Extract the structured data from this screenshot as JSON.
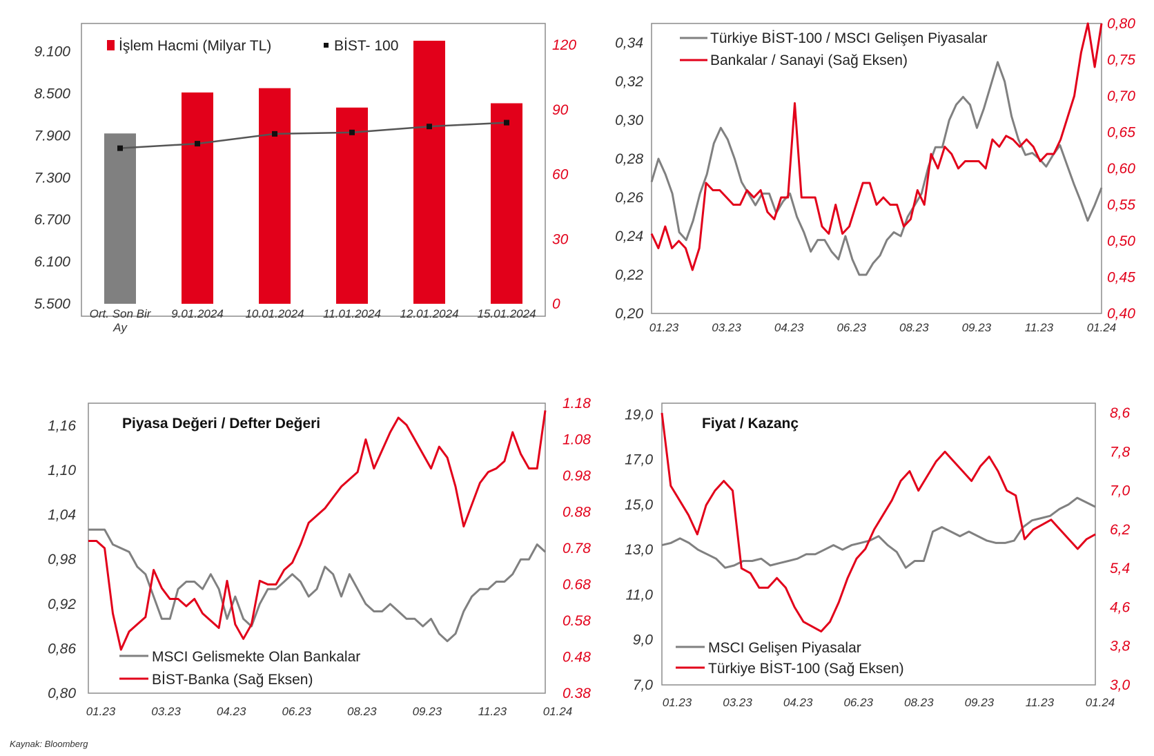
{
  "source": "Kaynak: Bloomberg",
  "colors": {
    "red": "#e2001a",
    "gray": "#808080",
    "line": "#555555",
    "axis": "#8c8c8c",
    "text": "#333333"
  },
  "chart_data": [
    {
      "id": "volume",
      "type": "bar",
      "categories": [
        "Ort. Son Bir Ay",
        "9.01.2024",
        "10.01.2024",
        "11.01.2024",
        "12.01.2024",
        "15.01.2024"
      ],
      "legend": [
        "İşlem Hacmi (Milyar TL)",
        "BİST- 100"
      ],
      "series": [
        {
          "name": "İşlem Hacmi (Milyar TL)",
          "axis": "right",
          "values": [
            79,
            98,
            100,
            91,
            122,
            93
          ],
          "colors": [
            "#808080",
            "#e2001a",
            "#e2001a",
            "#e2001a",
            "#e2001a",
            "#e2001a"
          ]
        },
        {
          "name": "BİST- 100",
          "axis": "left",
          "values": [
            7720,
            7785,
            7925,
            7945,
            8030,
            8085
          ]
        }
      ],
      "ylim_left": [
        5500,
        9500
      ],
      "ylim_right": [
        0,
        130
      ],
      "yticks_left": [
        "9.100",
        "8.500",
        "7.900",
        "7.300",
        "6.700",
        "6.100",
        "5.500"
      ],
      "yticks_left_values": [
        9100,
        8500,
        7900,
        7300,
        6700,
        6100,
        5500
      ],
      "yticks_right": [
        "120",
        "90",
        "60",
        "30",
        "0"
      ],
      "yticks_right_values": [
        120,
        90,
        60,
        30,
        0
      ]
    },
    {
      "id": "msci-ratio",
      "type": "line",
      "x_start": "01.23",
      "x_end": "01.24",
      "xticks": [
        "01.23",
        "03.23",
        "04.23",
        "06.23",
        "08.23",
        "09.23",
        "11.23",
        "01.24"
      ],
      "legend": [
        "Türkiye BİST-100 / MSCI Gelişen Piyasalar",
        "Bankalar / Sanayi (Sağ Eksen)"
      ],
      "series": [
        {
          "name": "Türkiye BİST-100 / MSCI Gelişen Piyasalar",
          "axis": "left",
          "values": [
            0.268,
            0.28,
            0.272,
            0.262,
            0.242,
            0.238,
            0.248,
            0.262,
            0.272,
            0.288,
            0.296,
            0.29,
            0.28,
            0.268,
            0.262,
            0.256,
            0.262,
            0.262,
            0.252,
            0.258,
            0.262,
            0.25,
            0.242,
            0.232,
            0.238,
            0.238,
            0.232,
            0.228,
            0.24,
            0.228,
            0.22,
            0.22,
            0.226,
            0.23,
            0.238,
            0.242,
            0.24,
            0.25,
            0.256,
            0.262,
            0.276,
            0.286,
            0.286,
            0.3,
            0.308,
            0.312,
            0.308,
            0.296,
            0.306,
            0.318,
            0.33,
            0.32,
            0.302,
            0.29,
            0.282,
            0.283,
            0.28,
            0.276,
            0.282,
            0.287,
            0.277,
            0.267,
            0.258,
            0.248,
            0.256,
            0.265
          ]
        },
        {
          "name": "Bankalar / Sanayi (Sağ Eksen)",
          "axis": "right",
          "values": [
            0.51,
            0.49,
            0.52,
            0.49,
            0.5,
            0.49,
            0.46,
            0.49,
            0.58,
            0.57,
            0.57,
            0.56,
            0.55,
            0.55,
            0.57,
            0.56,
            0.57,
            0.54,
            0.53,
            0.56,
            0.56,
            0.69,
            0.56,
            0.56,
            0.56,
            0.52,
            0.51,
            0.55,
            0.51,
            0.52,
            0.55,
            0.58,
            0.58,
            0.55,
            0.56,
            0.55,
            0.55,
            0.52,
            0.53,
            0.57,
            0.55,
            0.62,
            0.6,
            0.63,
            0.62,
            0.6,
            0.61,
            0.61,
            0.61,
            0.6,
            0.64,
            0.63,
            0.645,
            0.64,
            0.63,
            0.64,
            0.63,
            0.61,
            0.62,
            0.62,
            0.64,
            0.67,
            0.7,
            0.76,
            0.8,
            0.74,
            0.81
          ]
        }
      ],
      "ylim_left": [
        0.2,
        0.35
      ],
      "ylim_right": [
        0.4,
        0.8
      ],
      "yticks_left": [
        "0,34",
        "0,32",
        "0,30",
        "0,28",
        "0,26",
        "0,24",
        "0,22",
        "0,20"
      ],
      "yticks_left_values": [
        0.34,
        0.32,
        0.3,
        0.28,
        0.26,
        0.24,
        0.22,
        0.2
      ],
      "yticks_right": [
        "0,80",
        "0,75",
        "0,70",
        "0,65",
        "0,60",
        "0,55",
        "0,50",
        "0,45",
        "0,40"
      ],
      "yticks_right_values": [
        0.8,
        0.75,
        0.7,
        0.65,
        0.6,
        0.55,
        0.5,
        0.45,
        0.4
      ]
    },
    {
      "id": "pb",
      "type": "line",
      "title": "Piyasa Değeri / Defter Değeri",
      "x_start": "01.23",
      "x_end": "01.24",
      "xticks": [
        "01.23",
        "03.23",
        "04.23",
        "06.23",
        "08.23",
        "09.23",
        "11.23",
        "01.24"
      ],
      "legend": [
        "MSCI Gelismekte Olan Bankalar",
        "BİST-Banka (Sağ Eksen)"
      ],
      "series": [
        {
          "name": "MSCI Gelismekte Olan Bankalar",
          "axis": "left",
          "values": [
            1.02,
            1.02,
            1.02,
            1.0,
            0.995,
            0.99,
            0.97,
            0.96,
            0.93,
            0.9,
            0.9,
            0.94,
            0.95,
            0.95,
            0.94,
            0.96,
            0.94,
            0.9,
            0.93,
            0.9,
            0.89,
            0.92,
            0.94,
            0.94,
            0.95,
            0.96,
            0.95,
            0.93,
            0.94,
            0.97,
            0.96,
            0.93,
            0.96,
            0.94,
            0.92,
            0.91,
            0.91,
            0.92,
            0.91,
            0.9,
            0.9,
            0.89,
            0.9,
            0.88,
            0.87,
            0.88,
            0.91,
            0.93,
            0.94,
            0.94,
            0.95,
            0.95,
            0.96,
            0.98,
            0.98,
            1.0,
            0.99
          ]
        },
        {
          "name": "BİST-Banka (Sağ Eksen)",
          "axis": "right",
          "values": [
            0.8,
            0.8,
            0.78,
            0.6,
            0.5,
            0.55,
            0.57,
            0.59,
            0.72,
            0.67,
            0.64,
            0.64,
            0.62,
            0.64,
            0.6,
            0.58,
            0.56,
            0.69,
            0.57,
            0.53,
            0.57,
            0.69,
            0.68,
            0.68,
            0.72,
            0.74,
            0.79,
            0.85,
            0.87,
            0.89,
            0.92,
            0.95,
            0.97,
            0.99,
            1.08,
            1.0,
            1.05,
            1.1,
            1.14,
            1.12,
            1.08,
            1.04,
            1.0,
            1.06,
            1.03,
            0.95,
            0.84,
            0.9,
            0.96,
            0.99,
            1.0,
            1.02,
            1.1,
            1.04,
            1.0,
            1.0,
            1.16
          ]
        }
      ],
      "ylim_left": [
        0.8,
        1.19
      ],
      "ylim_right": [
        0.38,
        1.18
      ],
      "yticks_left": [
        "1,16",
        "1,10",
        "1,04",
        "0,98",
        "0,92",
        "0,86",
        "0,80"
      ],
      "yticks_left_values": [
        1.16,
        1.1,
        1.04,
        0.98,
        0.92,
        0.86,
        0.8
      ],
      "yticks_right": [
        "1.18",
        "1.08",
        "0.98",
        "0.88",
        "0.78",
        "0.68",
        "0.58",
        "0.48",
        "0.38"
      ],
      "yticks_right_values": [
        1.18,
        1.08,
        0.98,
        0.88,
        0.78,
        0.68,
        0.58,
        0.48,
        0.38
      ]
    },
    {
      "id": "pe",
      "type": "line",
      "title": "Fiyat / Kazanç",
      "x_start": "01.23",
      "x_end": "01.24",
      "xticks": [
        "01.23",
        "03.23",
        "04.23",
        "06.23",
        "08.23",
        "09.23",
        "11.23",
        "01.24"
      ],
      "legend": [
        "MSCI Gelişen Piyasalar",
        "Türkiye BİST-100 (Sağ Eksen)"
      ],
      "series": [
        {
          "name": "MSCI Gelişen Piyasalar",
          "axis": "left",
          "values": [
            13.2,
            13.3,
            13.5,
            13.3,
            13.0,
            12.8,
            12.6,
            12.2,
            12.3,
            12.5,
            12.5,
            12.6,
            12.3,
            12.4,
            12.5,
            12.6,
            12.8,
            12.8,
            13.0,
            13.2,
            13.0,
            13.2,
            13.3,
            13.4,
            13.6,
            13.2,
            12.9,
            12.2,
            12.5,
            12.5,
            13.8,
            14.0,
            13.8,
            13.6,
            13.8,
            13.6,
            13.4,
            13.3,
            13.3,
            13.4,
            14.0,
            14.3,
            14.4,
            14.5,
            14.8,
            15.0,
            15.3,
            15.1,
            14.9
          ]
        },
        {
          "name": "Türkiye BİST-100 (Sağ Eksen)",
          "axis": "right",
          "values": [
            8.6,
            7.1,
            6.8,
            6.5,
            6.1,
            6.7,
            7.0,
            7.2,
            7.0,
            5.4,
            5.3,
            5.0,
            5.0,
            5.2,
            5.0,
            4.6,
            4.3,
            4.2,
            4.1,
            4.3,
            4.7,
            5.2,
            5.6,
            5.8,
            6.2,
            6.5,
            6.8,
            7.2,
            7.4,
            7.0,
            7.3,
            7.6,
            7.8,
            7.6,
            7.4,
            7.2,
            7.5,
            7.7,
            7.4,
            7.0,
            6.9,
            6.0,
            6.2,
            6.3,
            6.4,
            6.2,
            6.0,
            5.8,
            6.0,
            6.1
          ]
        }
      ],
      "ylim_left": [
        7.0,
        19.5
      ],
      "ylim_right": [
        3.0,
        8.8
      ],
      "yticks_left": [
        "19,0",
        "17,0",
        "15,0",
        "13,0",
        "11,0",
        "9,0",
        "7,0"
      ],
      "yticks_left_values": [
        19,
        17,
        15,
        13,
        11,
        9,
        7
      ],
      "yticks_right": [
        "8,6",
        "7,8",
        "7,0",
        "6,2",
        "5,4",
        "4,6",
        "3,8",
        "3,0"
      ],
      "yticks_right_values": [
        8.6,
        7.8,
        7.0,
        6.2,
        5.4,
        4.6,
        3.8,
        3.0
      ]
    }
  ]
}
